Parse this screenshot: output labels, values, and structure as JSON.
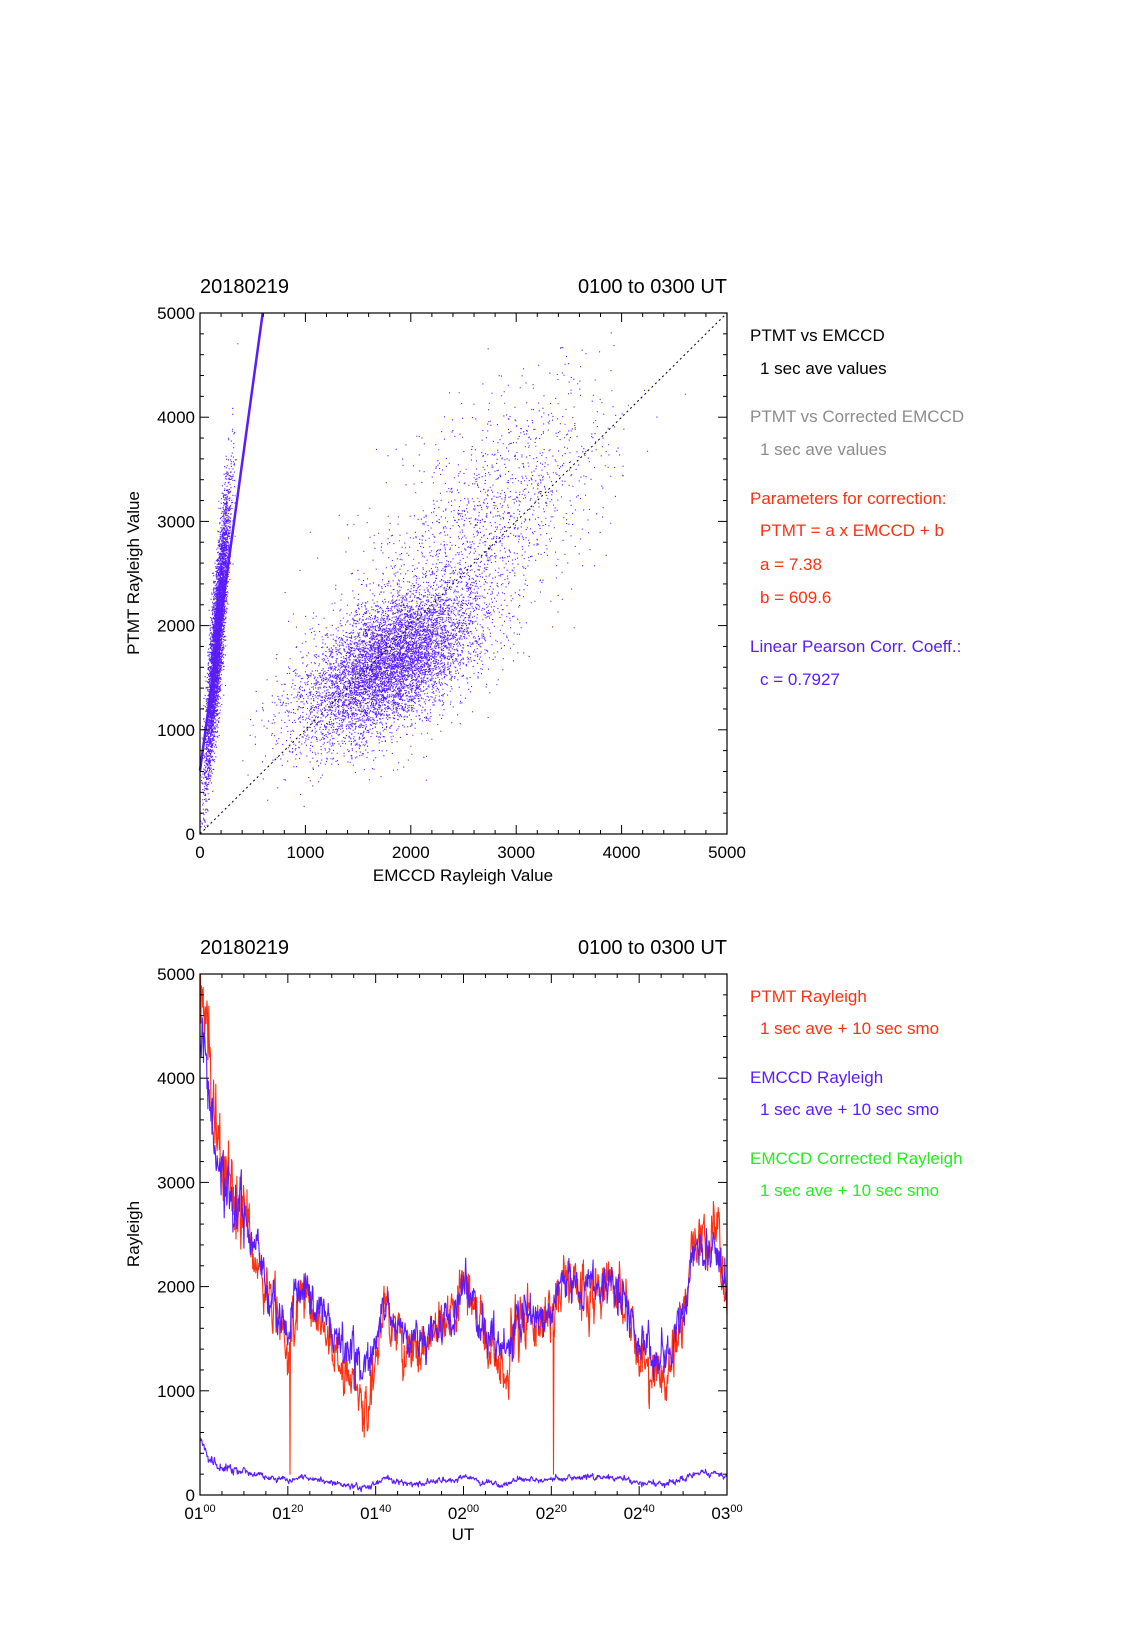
{
  "colors": {
    "black": "#000000",
    "gray": "#8c8c8c",
    "red": "#ff3010",
    "blue": "#5a1cff",
    "green": "#22ee22"
  },
  "chart_data": [
    {
      "type": "scatter",
      "header_left": "20180219",
      "header_right": "0100 to 0300 UT",
      "xlabel": "EMCCD Rayleigh Value",
      "ylabel": "PTMT Rayleigh Value",
      "xlim": [
        0,
        5000
      ],
      "ylim": [
        0,
        5000
      ],
      "x_ticks": [
        "0",
        "1000",
        "2000",
        "3000",
        "4000",
        "5000"
      ],
      "y_ticks": [
        "0",
        "1000",
        "2000",
        "3000",
        "4000",
        "5000"
      ],
      "grid": false,
      "series": [
        {
          "name": "PTMT vs EMCCD",
          "color": "#5a1cff",
          "clusters": [
            {
              "x_mean": 1800,
              "y_mean": 1650,
              "x_sd": 420,
              "y_sd": 380,
              "corr": 0.55,
              "n": 7000
            },
            {
              "x_mean": 2700,
              "y_mean": 3000,
              "x_sd": 550,
              "y_sd": 650,
              "corr": 0.6,
              "n": 1500
            },
            {
              "x_mean": 160,
              "y_mean": 1900,
              "x_sd": 55,
              "y_sd": 650,
              "corr": 0.85,
              "n": 5000
            }
          ]
        }
      ],
      "fit_line": {
        "a": 7.38,
        "b": 609.6,
        "color": "#5a1cff",
        "style": "solid"
      },
      "identity_line": {
        "from": [
          0,
          0
        ],
        "to": [
          5000,
          5000
        ],
        "style": "dotted",
        "color": "#000000"
      },
      "legend": [
        {
          "text": "PTMT vs EMCCD",
          "color": "black"
        },
        {
          "text": "1 sec ave values",
          "color": "black",
          "indent": true
        },
        {
          "text": "PTMT vs Corrected EMCCD",
          "color": "gray"
        },
        {
          "text": "1 sec ave values",
          "color": "gray",
          "indent": true
        },
        {
          "text": "Parameters for correction:",
          "color": "red"
        },
        {
          "text": "PTMT = a x EMCCD + b",
          "color": "red",
          "indent": true
        },
        {
          "text": "a = 7.38",
          "color": "red",
          "indent": true
        },
        {
          "text": "b =  609.6",
          "color": "red",
          "indent": true
        },
        {
          "text": "Linear Pearson Corr. Coeff.:",
          "color": "blue"
        },
        {
          "text": "c = 0.7927",
          "color": "blue",
          "indent": true
        }
      ]
    },
    {
      "type": "line",
      "header_left": "20180219",
      "header_right": "0100 to 0300 UT",
      "xlabel": "UT",
      "ylabel": "Rayleigh",
      "xlim_minutes": [
        0,
        120
      ],
      "ylim": [
        0,
        5000
      ],
      "x_ticks": [
        {
          "h": "01",
          "m": "00"
        },
        {
          "h": "01",
          "m": "20"
        },
        {
          "h": "01",
          "m": "40"
        },
        {
          "h": "02",
          "m": "00"
        },
        {
          "h": "02",
          "m": "20"
        },
        {
          "h": "02",
          "m": "40"
        },
        {
          "h": "03",
          "m": "00"
        }
      ],
      "y_ticks": [
        "0",
        "1000",
        "2000",
        "3000",
        "4000",
        "5000"
      ],
      "grid": false,
      "series": [
        {
          "name": "PTMT Rayleigh",
          "color": "#ff3010",
          "x_minutes": [
            0,
            2,
            4,
            6,
            8,
            10,
            12,
            14,
            16,
            18,
            20,
            22,
            24,
            26,
            28,
            30,
            32,
            34,
            36,
            38,
            40,
            42,
            44,
            46,
            48,
            50,
            52,
            54,
            56,
            58,
            60,
            62,
            64,
            66,
            68,
            70,
            72,
            74,
            76,
            78,
            80,
            82,
            84,
            86,
            88,
            90,
            92,
            94,
            96,
            98,
            100,
            102,
            104,
            106,
            108,
            110,
            112,
            114,
            116,
            118,
            120
          ],
          "y": [
            5000,
            4200,
            3400,
            3000,
            2800,
            2700,
            2400,
            2100,
            1850,
            1700,
            1400,
            1900,
            2000,
            1750,
            1600,
            1450,
            1250,
            1150,
            950,
            800,
            1300,
            1900,
            1650,
            1450,
            1400,
            1400,
            1450,
            1550,
            1650,
            1700,
            2050,
            1900,
            1550,
            1450,
            1250,
            1150,
            1650,
            1800,
            1700,
            1650,
            1700,
            2000,
            2100,
            1950,
            2000,
            1950,
            2050,
            2100,
            2000,
            1650,
            1300,
            1250,
            1150,
            1050,
            1300,
            1700,
            2300,
            2550,
            2400,
            2550,
            1800
          ],
          "spikes": [
            {
              "x_minutes": 20.5,
              "y": 200
            },
            {
              "x_minutes": 80.5,
              "y": 200
            }
          ]
        },
        {
          "name": "EMCCD Rayleigh",
          "color": "#5a1cff",
          "x_minutes": [
            0,
            2,
            4,
            6,
            8,
            10,
            12,
            14,
            16,
            18,
            20,
            22,
            24,
            26,
            28,
            30,
            32,
            34,
            36,
            38,
            40,
            42,
            44,
            46,
            48,
            50,
            52,
            54,
            56,
            58,
            60,
            62,
            64,
            66,
            68,
            70,
            72,
            74,
            76,
            78,
            80,
            82,
            84,
            86,
            88,
            90,
            92,
            94,
            96,
            98,
            100,
            102,
            104,
            106,
            108,
            110,
            112,
            114,
            116,
            118,
            120
          ],
          "y": [
            4500,
            3800,
            3100,
            2900,
            2700,
            2600,
            2350,
            2100,
            1900,
            1750,
            1600,
            1950,
            2000,
            1800,
            1700,
            1550,
            1400,
            1350,
            1300,
            1250,
            1500,
            1950,
            1700,
            1550,
            1500,
            1500,
            1550,
            1600,
            1700,
            1750,
            2050,
            1900,
            1600,
            1500,
            1400,
            1350,
            1700,
            1800,
            1700,
            1700,
            1750,
            1950,
            2050,
            1950,
            1950,
            1950,
            2000,
            2050,
            1950,
            1700,
            1450,
            1400,
            1350,
            1300,
            1450,
            1750,
            2250,
            2450,
            2300,
            2350,
            1900
          ]
        },
        {
          "name": "EMCCD Corrected Rayleigh",
          "color": "#5a1cff",
          "x_minutes": [
            0,
            2,
            4,
            6,
            8,
            10,
            12,
            14,
            16,
            18,
            20,
            22,
            24,
            26,
            28,
            30,
            32,
            34,
            36,
            38,
            40,
            42,
            44,
            46,
            48,
            50,
            52,
            54,
            56,
            58,
            60,
            62,
            64,
            66,
            68,
            70,
            72,
            74,
            76,
            78,
            80,
            82,
            84,
            86,
            88,
            90,
            92,
            94,
            96,
            98,
            100,
            102,
            104,
            106,
            108,
            110,
            112,
            114,
            116,
            118,
            120
          ],
          "y": [
            560,
            350,
            280,
            260,
            240,
            230,
            200,
            180,
            160,
            150,
            130,
            160,
            170,
            150,
            140,
            120,
            100,
            90,
            80,
            80,
            100,
            160,
            140,
            120,
            110,
            110,
            120,
            130,
            140,
            140,
            170,
            160,
            130,
            120,
            100,
            100,
            140,
            150,
            140,
            140,
            150,
            160,
            170,
            160,
            160,
            160,
            170,
            170,
            160,
            140,
            120,
            110,
            110,
            100,
            120,
            150,
            190,
            220,
            200,
            210,
            160
          ]
        }
      ],
      "legend": [
        {
          "text": "PTMT Rayleigh",
          "color": "red"
        },
        {
          "text": "1 sec ave + 10 sec smo",
          "color": "red",
          "indent": true
        },
        {
          "text": "EMCCD Rayleigh",
          "color": "blue"
        },
        {
          "text": "1 sec ave + 10 sec smo",
          "color": "blue",
          "indent": true
        },
        {
          "text": "EMCCD Corrected Rayleigh",
          "color": "green"
        },
        {
          "text": "1 sec ave + 10 sec smo",
          "color": "green",
          "indent": true
        }
      ]
    }
  ]
}
